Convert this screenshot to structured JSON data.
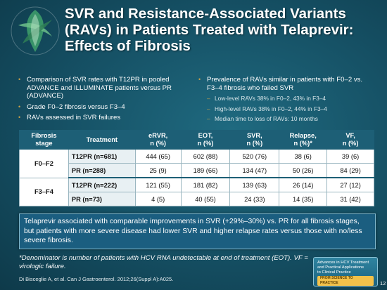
{
  "title": "SVR and Resistance-Associated Variants (RAVs) in Patients Treated with Telaprevir: Effects of Fibrosis",
  "left_bullets": [
    "Comparison of SVR rates with T12PR in pooled ADVANCE and ILLUMINATE patients versus PR (ADVANCE)",
    "Grade F0–2 fibrosis versus F3–4",
    "RAVs assessed in SVR failures"
  ],
  "right_bullet": "Prevalence of RAVs similar in patients with F0–2 vs. F3–4 fibrosis who failed SVR",
  "right_sub_bullets": [
    "Low-level RAVs 38% in F0–2, 43% in F3–4",
    "High-level RAVs 38% in F0–2, 44% in F3–4",
    "Median time to loss of RAVs: 10 months"
  ],
  "table": {
    "headers": {
      "stage": [
        "Fibrosis",
        "stage"
      ],
      "treatment": "Treatment",
      "ervr": [
        "eRVR,",
        "n (%)"
      ],
      "eot": [
        "EOT,",
        "n (%)"
      ],
      "svr": [
        "SVR,",
        "n (%)"
      ],
      "relapse": [
        "Relapse,",
        "n (%)*"
      ],
      "vf": [
        "VF,",
        "n (%)"
      ]
    },
    "groups": [
      {
        "stage": "F0–F2",
        "rows": [
          {
            "treatment": "T12PR (n=681)",
            "ervr": "444 (65)",
            "eot": "602 (88)",
            "svr": "520 (76)",
            "relapse": "38 (6)",
            "vf": "39 (6)"
          },
          {
            "treatment": "PR (n=288)",
            "ervr": "25 (9)",
            "eot": "189 (66)",
            "svr": "134 (47)",
            "relapse": "50 (26)",
            "vf": "84 (29)"
          }
        ]
      },
      {
        "stage": "F3–F4",
        "rows": [
          {
            "treatment": "T12PR (n=222)",
            "ervr": "121 (55)",
            "eot": "181 (82)",
            "svr": "139 (63)",
            "relapse": "26 (14)",
            "vf": "27 (12)"
          },
          {
            "treatment": "PR (n=73)",
            "ervr": "4 (5)",
            "eot": "40 (55)",
            "svr": "24 (33)",
            "relapse": "14 (35)",
            "vf": "31 (42)"
          }
        ]
      }
    ]
  },
  "callout": "Telaprevir associated with comparable improvements in SVR (+29%–30%) vs. PR for all fibrosis stages, but patients with more severe disease had lower SVR and higher relapse rates versus those with no/less severe fibrosis.",
  "footnote": "*Denominator is number of patients with HCV RNA undetectable at end of treatment (EOT). VF = virologic failure.",
  "citation": "Di Bisceglie A, et al. Can J Gastroenterol. 2012;26(Suppl A):A025.",
  "badge": {
    "lines": [
      "Advances in HCV Treatment",
      "and Practical Applications",
      "to Clinical Practice"
    ],
    "tag": "FROM SCIENCE TO PRACTICE"
  },
  "page_number": "12",
  "colors": {
    "background": "#154f63",
    "table_header": "#1d5f76",
    "callout": "#1b5e80",
    "bullet": "#c9a24a"
  }
}
